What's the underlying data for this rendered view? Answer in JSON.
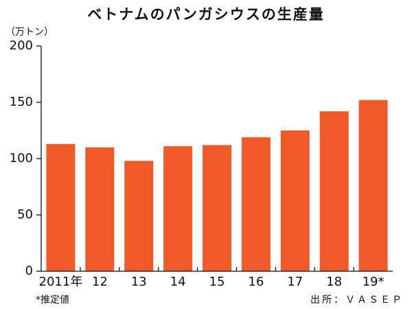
{
  "chart_data": {
    "type": "bar",
    "title": "ベトナムのパンガシウスの生産量",
    "y_unit": "（万トン）",
    "categories": [
      "2011年",
      "12",
      "13",
      "14",
      "15",
      "16",
      "17",
      "18",
      "19*"
    ],
    "values": [
      113,
      110,
      98,
      111,
      112,
      119,
      125,
      142,
      152
    ],
    "color": "#f05a28",
    "ylim": [
      0,
      200
    ],
    "yticks": [
      0,
      50,
      100,
      150,
      200
    ],
    "grid": false,
    "note": "*推定値",
    "source": "出所：ＶＡＳＥＰ"
  }
}
